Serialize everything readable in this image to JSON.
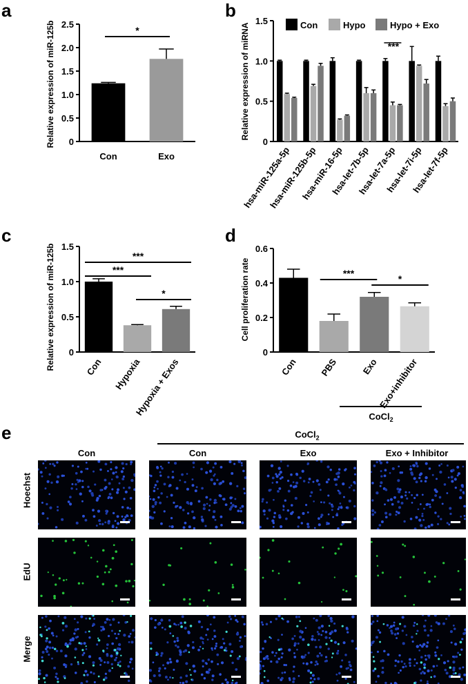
{
  "panels": {
    "a": "a",
    "b": "b",
    "c": "c",
    "d": "d",
    "e": "e"
  },
  "chart_data": [
    {
      "panel": "a",
      "type": "bar",
      "categories": [
        "Con",
        "Exo"
      ],
      "values": [
        1.24,
        1.76
      ],
      "errors": [
        0.02,
        0.21
      ],
      "colors": [
        "#000000",
        "#9a9a9a"
      ],
      "ylabel": "Relative expression of miR-125b",
      "ylim": [
        0,
        2.5
      ],
      "yticks": [
        "0",
        "0.5",
        "1.0",
        "1.5",
        "2.0",
        "2.5"
      ],
      "significance": [
        {
          "from": 0,
          "to": 1,
          "label": "*"
        }
      ]
    },
    {
      "panel": "b",
      "type": "bar",
      "categories": [
        "hsa-miR-125a-5p",
        "hsa-miR-125b-5p",
        "hsa-miR-16-5p",
        "hsa-let-7b-5p",
        "hsa-let-7a-5p",
        "hsa-let-7i-5p",
        "hsa-let-7f-5p"
      ],
      "series": [
        {
          "name": "Con",
          "color": "#000000",
          "values": [
            1.0,
            1.0,
            1.0,
            1.0,
            1.0,
            1.0,
            1.0
          ],
          "errors": [
            0.01,
            0.01,
            0.04,
            0.01,
            0.03,
            0.18,
            0.06
          ]
        },
        {
          "name": "Hypo",
          "color": "#a9a9a9",
          "values": [
            0.59,
            0.69,
            0.27,
            0.6,
            0.45,
            0.94,
            0.44
          ],
          "errors": [
            0.01,
            0.02,
            0.01,
            0.07,
            0.04,
            0.01,
            0.03
          ]
        },
        {
          "name": "Hypo + Exo",
          "color": "#7a7a7a",
          "values": [
            0.54,
            0.94,
            0.32,
            0.6,
            0.45,
            0.72,
            0.5
          ],
          "errors": [
            0.01,
            0.03,
            0.01,
            0.04,
            0.01,
            0.05,
            0.04
          ]
        }
      ],
      "ylabel": "Relative expression of miRNA",
      "ylim": [
        0,
        1.5
      ],
      "yticks": [
        "0",
        "0.5",
        "1.0",
        "1.5"
      ],
      "significance": [
        {
          "category": 4,
          "label": "***"
        }
      ],
      "legend": "top"
    },
    {
      "panel": "c",
      "type": "bar",
      "categories": [
        "Con",
        "Hypoxia",
        "Hypoxia + Exos"
      ],
      "values": [
        1.0,
        0.38,
        0.61
      ],
      "errors": [
        0.04,
        0.01,
        0.04
      ],
      "colors": [
        "#000000",
        "#a9a9a9",
        "#7a7a7a"
      ],
      "ylabel": "Relative expression of miR-125b",
      "ylim": [
        0,
        1.5
      ],
      "yticks": [
        "0",
        "0.5",
        "1.0",
        "1.5"
      ],
      "significance": [
        {
          "from": 0,
          "to": 1,
          "label": "***"
        },
        {
          "from": 0,
          "to": 2,
          "label": "***"
        },
        {
          "from": 1,
          "to": 2,
          "label": "*"
        }
      ]
    },
    {
      "panel": "d",
      "type": "bar",
      "categories": [
        "Con",
        "PBS",
        "Exo",
        "Exo+inhibitor"
      ],
      "values": [
        0.43,
        0.18,
        0.32,
        0.265
      ],
      "errors": [
        0.05,
        0.04,
        0.025,
        0.02
      ],
      "colors": [
        "#000000",
        "#a9a9a9",
        "#7a7a7a",
        "#d4d4d4"
      ],
      "ylabel": "Cell proliferation rate",
      "ylim": [
        0,
        0.6
      ],
      "yticks": [
        "0",
        "0.2",
        "0.4",
        "0.6"
      ],
      "significance": [
        {
          "from": 1,
          "to": 2,
          "label": "***"
        },
        {
          "from": 2,
          "to": 3,
          "label": "*"
        }
      ],
      "group_label": {
        "from": 1,
        "to": 3,
        "text": "CoCl2"
      }
    }
  ],
  "panel_e": {
    "group_label": "CoCl2",
    "columns": [
      "Con",
      "Con",
      "Exo",
      "Exo + Inhibitor"
    ],
    "rows": [
      "Hoechst",
      "EdU",
      "Merge"
    ]
  }
}
